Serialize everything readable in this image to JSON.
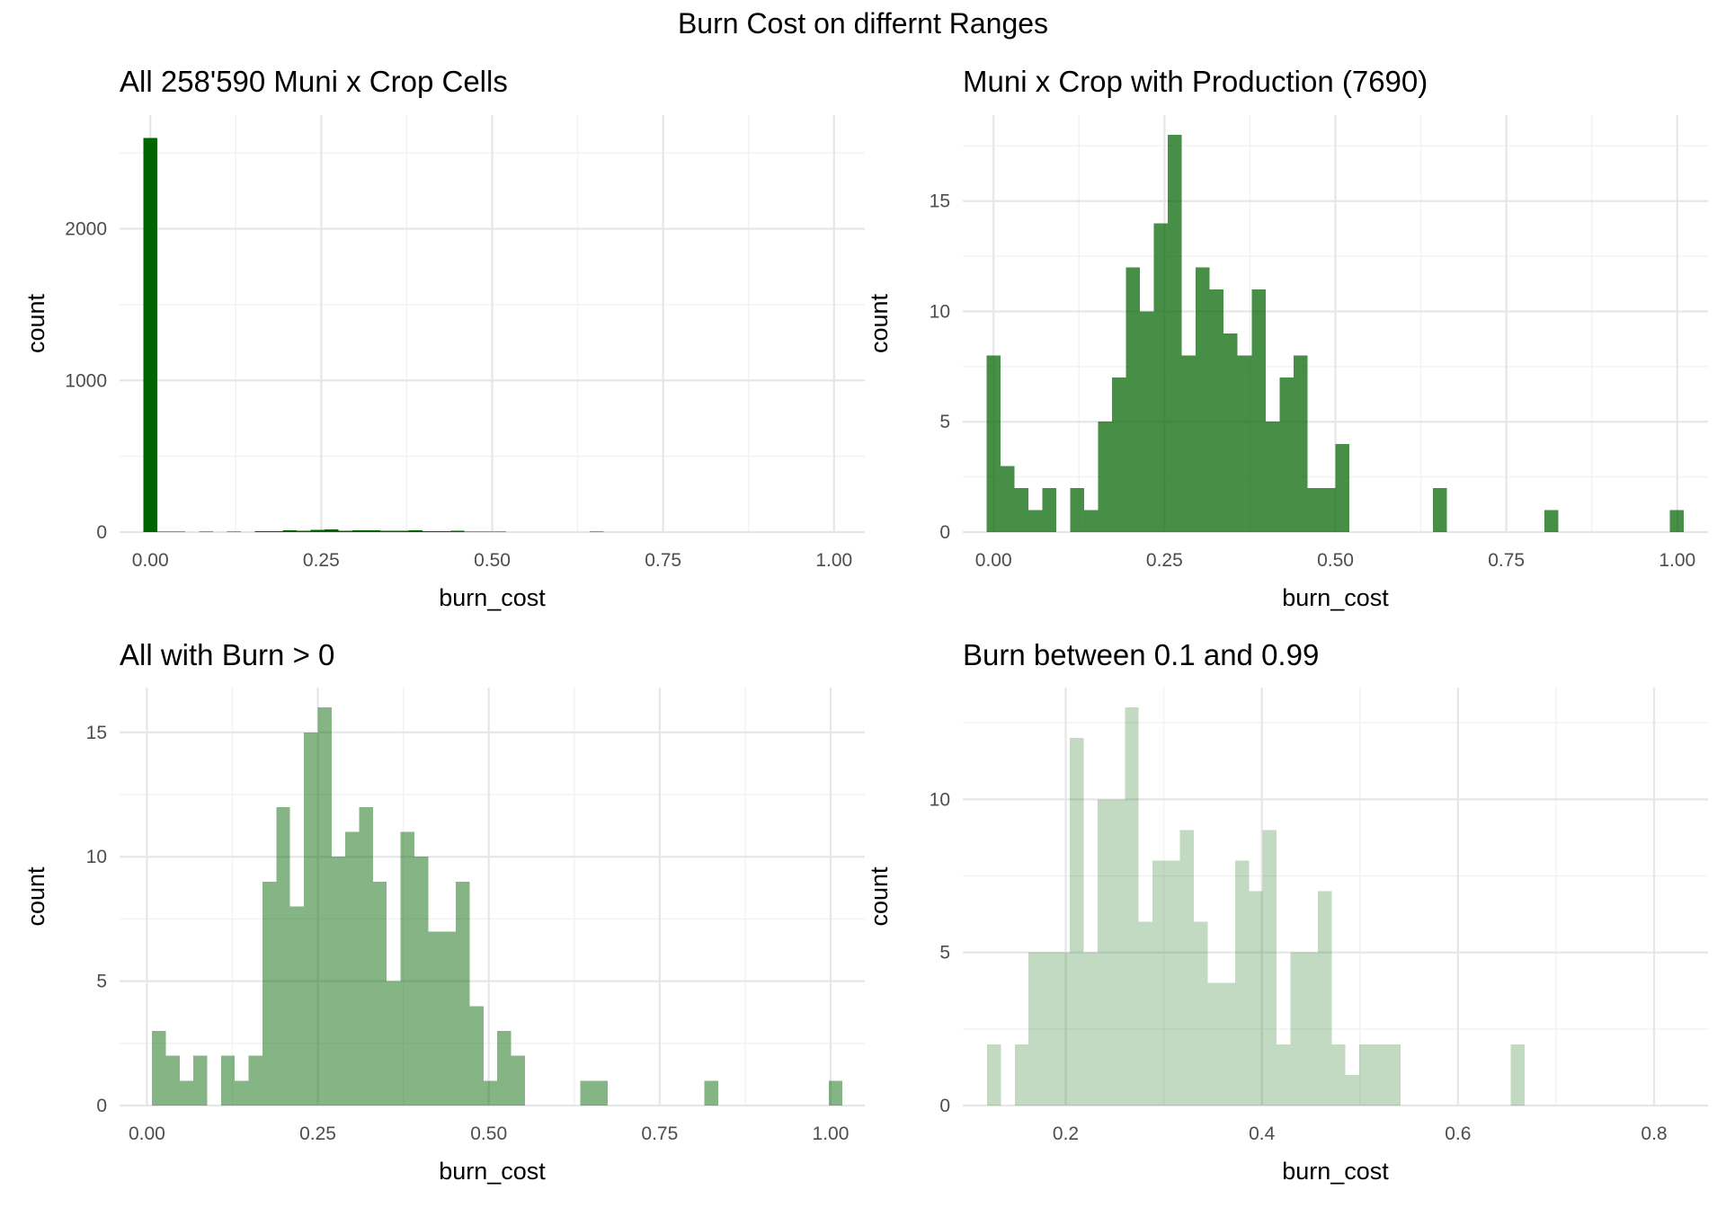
{
  "suptitle": "Burn Cost on differnt Ranges",
  "colors": {
    "background": "#ffffff",
    "grid_major": "#e6e6e6",
    "grid_minor": "#f2f2f2",
    "tick_text": "#4d4d4d",
    "axis_title": "#000000"
  },
  "chart_data": [
    {
      "type": "bar",
      "title": "All 258'590 Muni x Crop Cells",
      "xlabel": "burn_cost",
      "ylabel": "count",
      "xlim": [
        -0.045,
        1.045
      ],
      "ylim": [
        0,
        2750
      ],
      "xticks": [
        0,
        0.25,
        0.5,
        0.75,
        1
      ],
      "xtick_labels": [
        "0.00",
        "0.25",
        "0.50",
        "0.75",
        "1.00"
      ],
      "yticks": [
        0,
        1000,
        2000
      ],
      "ytick_labels": [
        "0",
        "1000",
        "2000"
      ],
      "bin_width": 0.0204,
      "bin_start": -0.0102,
      "color": "#006400",
      "opacity": 1.0,
      "grid": true,
      "values": [
        2600,
        3,
        2,
        1,
        2,
        0,
        2,
        1,
        5,
        7,
        12,
        10,
        14,
        18,
        8,
        12,
        11,
        9,
        8,
        11,
        5,
        7,
        8,
        2,
        2,
        4,
        0,
        0,
        0,
        0,
        0,
        0,
        2,
        0,
        0,
        0,
        0,
        0,
        0,
        0,
        1,
        0,
        0,
        0,
        0,
        0,
        0,
        0,
        0,
        1
      ]
    },
    {
      "type": "bar",
      "title": "Muni x Crop with Production (7690)",
      "xlabel": "burn_cost",
      "ylabel": "count",
      "xlim": [
        -0.045,
        1.045
      ],
      "ylim": [
        0,
        18.9
      ],
      "xticks": [
        0,
        0.25,
        0.5,
        0.75,
        1
      ],
      "xtick_labels": [
        "0.00",
        "0.25",
        "0.50",
        "0.75",
        "1.00"
      ],
      "yticks": [
        0,
        5,
        10,
        15
      ],
      "ytick_labels": [
        "0",
        "5",
        "10",
        "15"
      ],
      "bin_width": 0.0204,
      "bin_start": -0.0102,
      "color": "#006400",
      "opacity": 0.72,
      "grid": true,
      "values": [
        8,
        3,
        2,
        1,
        2,
        0,
        2,
        1,
        5,
        7,
        12,
        10,
        14,
        18,
        8,
        12,
        11,
        9,
        8,
        11,
        5,
        7,
        8,
        2,
        2,
        4,
        0,
        0,
        0,
        0,
        0,
        0,
        2,
        0,
        0,
        0,
        0,
        0,
        0,
        0,
        1,
        0,
        0,
        0,
        0,
        0,
        0,
        0,
        0,
        1
      ]
    },
    {
      "type": "bar",
      "title": "All with Burn > 0",
      "xlabel": "burn_cost",
      "ylabel": "count",
      "xlim": [
        -0.04,
        1.05
      ],
      "ylim": [
        0,
        16.8
      ],
      "xticks": [
        0,
        0.25,
        0.5,
        0.75,
        1
      ],
      "xtick_labels": [
        "0.00",
        "0.25",
        "0.50",
        "0.75",
        "1.00"
      ],
      "yticks": [
        0,
        5,
        10,
        15
      ],
      "ytick_labels": [
        "0",
        "5",
        "10",
        "15"
      ],
      "bin_width": 0.0202,
      "bin_start": 0.0074,
      "color": "#006400",
      "opacity": 0.48,
      "grid": true,
      "values": [
        3,
        2,
        1,
        2,
        0,
        2,
        1,
        2,
        9,
        12,
        8,
        15,
        16,
        10,
        11,
        12,
        9,
        5,
        11,
        10,
        7,
        7,
        9,
        4,
        1,
        3,
        2,
        0,
        0,
        0,
        0,
        1,
        1,
        0,
        0,
        0,
        0,
        0,
        0,
        0,
        1,
        0,
        0,
        0,
        0,
        0,
        0,
        0,
        0,
        1
      ]
    },
    {
      "type": "bar",
      "title": "Burn between 0.1 and 0.99",
      "xlabel": "burn_cost",
      "ylabel": "count",
      "xlim": [
        0.095,
        0.855
      ],
      "ylim": [
        0,
        13.65
      ],
      "xticks": [
        0.2,
        0.4,
        0.6,
        0.8
      ],
      "xtick_labels": [
        "0.2",
        "0.4",
        "0.6",
        "0.8"
      ],
      "yticks": [
        0,
        5,
        10
      ],
      "ytick_labels": [
        "0",
        "5",
        "10"
      ],
      "bin_width": 0.01405,
      "bin_start": 0.1199,
      "color": "#006400",
      "opacity": 0.24,
      "grid": true,
      "values": [
        2,
        0,
        2,
        5,
        5,
        5,
        12,
        5,
        10,
        10,
        13,
        6,
        8,
        8,
        9,
        6,
        4,
        4,
        8,
        7,
        9,
        2,
        5,
        5,
        7,
        2,
        1,
        2,
        2,
        2,
        0,
        0,
        0,
        0,
        0,
        0,
        0,
        0,
        2,
        0,
        0,
        0,
        0,
        0,
        0,
        0,
        0,
        0,
        0,
        0,
        0,
        0,
        0,
        0,
        0,
        0,
        0,
        0,
        0,
        0,
        0,
        0,
        0,
        0,
        0,
        0,
        0,
        0,
        0,
        0,
        0,
        0,
        1
      ]
    }
  ]
}
